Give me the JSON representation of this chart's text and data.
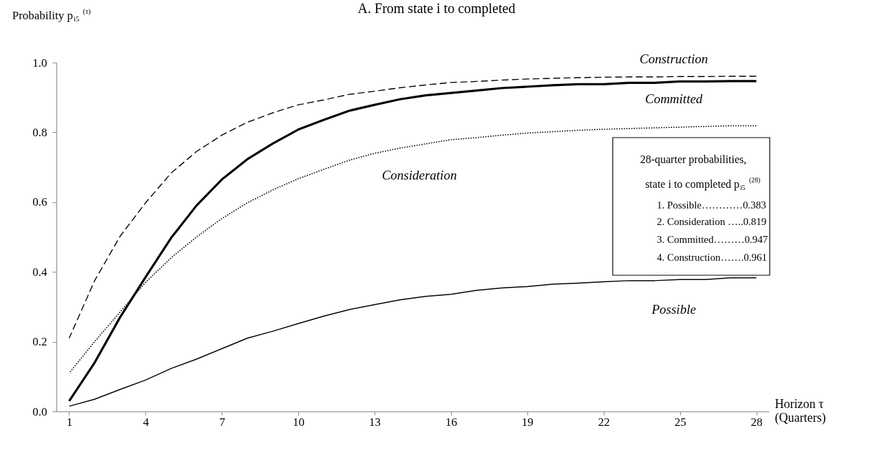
{
  "chart_data": {
    "type": "line",
    "title": "A. From state i to completed",
    "ylabel": "Probability p$_{i5}$$^{(τ)}$",
    "xlabel": "Horizon τ\n(Quarters)",
    "x": [
      1,
      2,
      3,
      4,
      5,
      6,
      7,
      8,
      9,
      10,
      11,
      12,
      13,
      14,
      15,
      16,
      17,
      18,
      19,
      20,
      21,
      22,
      23,
      24,
      25,
      26,
      27,
      28
    ],
    "xlim": [
      0.5,
      28.5
    ],
    "xticks": [
      1,
      4,
      7,
      10,
      13,
      16,
      19,
      22,
      25,
      28
    ],
    "ylim": [
      0,
      1
    ],
    "yticks": [
      {
        "value": 0,
        "label": "0.0"
      },
      0.2,
      0.4,
      0.6,
      0.8,
      {
        "value": 1,
        "label": "1.0"
      }
    ],
    "grid": false,
    "series": [
      {
        "name": "Possible",
        "color": "#000000",
        "line_style": "solid",
        "values": [
          0.015,
          0.035,
          0.063,
          0.09,
          0.123,
          0.15,
          0.18,
          0.21,
          0.23,
          0.252,
          0.273,
          0.292,
          0.306,
          0.32,
          0.33,
          0.336,
          0.347,
          0.354,
          0.358,
          0.365,
          0.368,
          0.372,
          0.375,
          0.375,
          0.378,
          0.378,
          0.383,
          0.383
        ]
      },
      {
        "name": "Consideration",
        "color": "#000000",
        "line_style": "dotted",
        "values": [
          0.11,
          0.2,
          0.285,
          0.37,
          0.44,
          0.5,
          0.553,
          0.598,
          0.635,
          0.667,
          0.694,
          0.72,
          0.74,
          0.755,
          0.767,
          0.779,
          0.785,
          0.792,
          0.798,
          0.802,
          0.806,
          0.809,
          0.811,
          0.813,
          0.815,
          0.817,
          0.819,
          0.819
        ]
      },
      {
        "name": "Committed",
        "color": "#000000",
        "line_style": "solid",
        "values": [
          0.03,
          0.14,
          0.27,
          0.385,
          0.497,
          0.59,
          0.665,
          0.723,
          0.768,
          0.808,
          0.836,
          0.862,
          0.879,
          0.895,
          0.906,
          0.913,
          0.92,
          0.927,
          0.931,
          0.935,
          0.938,
          0.938,
          0.942,
          0.942,
          0.946,
          0.946,
          0.947,
          0.947
        ]
      },
      {
        "name": "Construction",
        "color": "#000000",
        "line_style": "dashed",
        "values": [
          0.21,
          0.375,
          0.502,
          0.598,
          0.683,
          0.745,
          0.792,
          0.829,
          0.856,
          0.879,
          0.893,
          0.909,
          0.918,
          0.928,
          0.936,
          0.943,
          0.946,
          0.95,
          0.953,
          0.955,
          0.957,
          0.958,
          0.959,
          0.959,
          0.96,
          0.96,
          0.961,
          0.961
        ]
      }
    ],
    "annotations": [
      "28-quarter probabilities,",
      "state i to completed  p$_{i5}$$^{(28)}$",
      "1. Possible…………0.383",
      "2. Consideration …..0.819",
      "3. Committed………0.947",
      "4. Construction…….0.961"
    ]
  }
}
